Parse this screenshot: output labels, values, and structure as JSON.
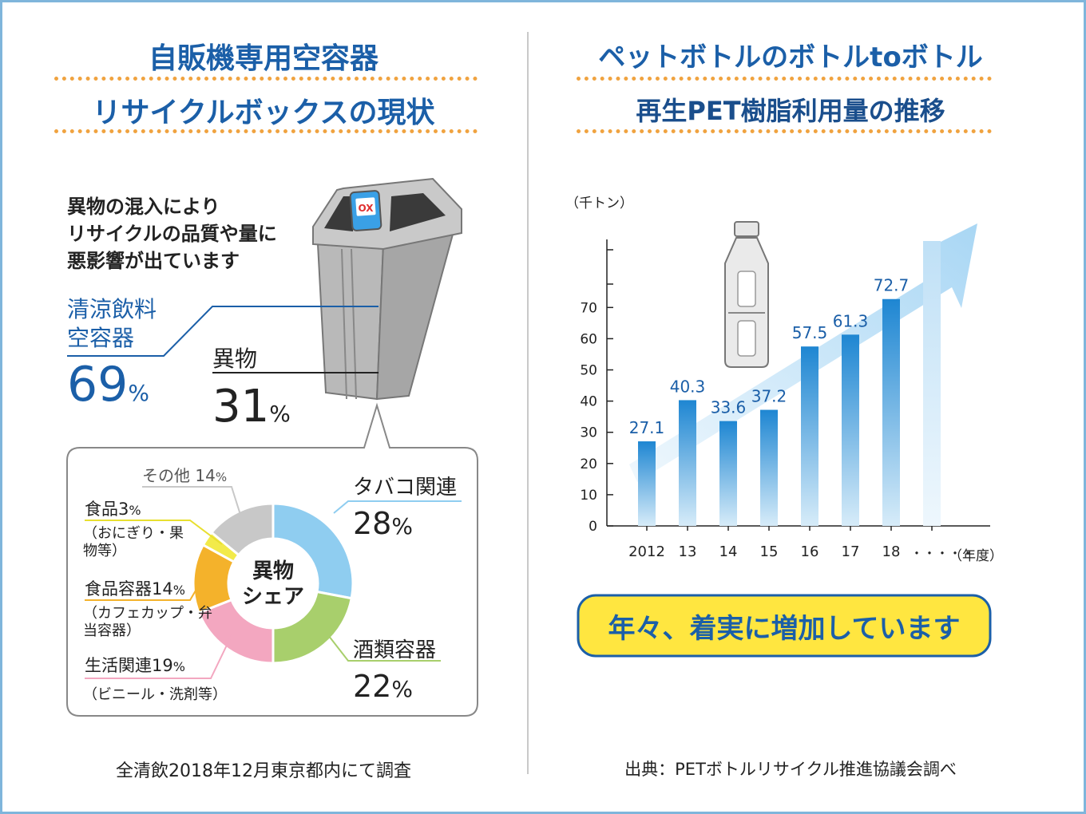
{
  "left": {
    "title_line1": "自販機専用空容器",
    "title_line2": "リサイクルボックスの現状",
    "statement": [
      "異物の混入により",
      "リサイクルの品質や量に",
      "悪影響が出ています"
    ],
    "bin_badge": "OX",
    "beverage": {
      "label_line1": "清涼飲料",
      "label_line2": "空容器",
      "value": "69",
      "unit": "%"
    },
    "foreign": {
      "label": "異物",
      "value": "31",
      "unit": "%"
    },
    "donut_center_line1": "異物",
    "donut_center_line2": "シェア",
    "footnote": "全清飲2018年12月東京都内にて調査"
  },
  "right": {
    "title_line1": "ペットボトルのボトルtoボトル",
    "title_line2": "再生PET樹脂利用量の推移",
    "yunit": "（千トン）",
    "xunit": "（年度）",
    "ellipsis": "・・・・・",
    "banner": "年々、着実に増加しています",
    "source": "出典：PETボトルリサイクル推進協議会調べ"
  },
  "chart_data": [
    {
      "type": "pie",
      "title": "異物シェア",
      "slices": [
        {
          "name": "タバコ関連",
          "value": 28,
          "detail": "",
          "color": "#8fcdf0"
        },
        {
          "name": "酒類容器",
          "value": 22,
          "detail": "",
          "color": "#a8cf6c"
        },
        {
          "name": "生活関連",
          "value": 19,
          "detail": "（ビニール・洗剤等）",
          "color": "#f3a7c0"
        },
        {
          "name": "食品容器",
          "value": 14,
          "detail": "（カフェカップ・弁当容器）",
          "color": "#f4b22b"
        },
        {
          "name": "食品",
          "value": 3,
          "detail": "（おにぎり・果物等）",
          "color": "#f2ea4a"
        },
        {
          "name": "その他",
          "value": 14,
          "detail": "",
          "color": "#c8c8c8"
        }
      ]
    },
    {
      "type": "bar",
      "categories": [
        "2012",
        "13",
        "14",
        "15",
        "16",
        "17",
        "18"
      ],
      "values": [
        27.1,
        40.3,
        33.6,
        37.2,
        57.5,
        61.3,
        72.7
      ],
      "ylabel": "（千トン）",
      "xlabel": "（年度）",
      "ylim": [
        0,
        70
      ],
      "yticks": [
        0,
        10,
        20,
        30,
        40,
        50,
        60,
        70
      ],
      "bar_color": "#2b90d9"
    }
  ]
}
